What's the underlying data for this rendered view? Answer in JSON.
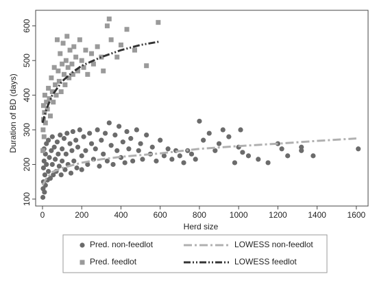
{
  "chart_data": {
    "type": "scatter",
    "xlabel": "Herd size",
    "ylabel": "Duration of BD (days)",
    "xlim": [
      -35,
      1660
    ],
    "ylim": [
      80,
      645
    ],
    "xticks": [
      0,
      200,
      400,
      600,
      800,
      1000,
      1200,
      1400,
      1600
    ],
    "yticks": [
      100,
      200,
      300,
      400,
      500,
      600
    ],
    "grid": false,
    "series": [
      {
        "name": "Pred. non-feedlot",
        "color": "#6b6b6b",
        "marker": "circle",
        "x": [
          2,
          3,
          5,
          5,
          8,
          8,
          10,
          12,
          15,
          15,
          20,
          20,
          25,
          30,
          30,
          35,
          40,
          45,
          50,
          50,
          55,
          60,
          65,
          70,
          75,
          80,
          85,
          90,
          95,
          100,
          100,
          110,
          115,
          120,
          125,
          130,
          140,
          145,
          150,
          155,
          160,
          170,
          175,
          180,
          190,
          200,
          200,
          210,
          220,
          230,
          240,
          250,
          260,
          270,
          280,
          290,
          300,
          310,
          320,
          330,
          340,
          350,
          360,
          370,
          380,
          390,
          400,
          410,
          420,
          430,
          440,
          450,
          460,
          480,
          490,
          500,
          510,
          530,
          550,
          560,
          580,
          600,
          620,
          640,
          660,
          680,
          700,
          720,
          740,
          760,
          780,
          800,
          820,
          850,
          880,
          900,
          920,
          950,
          980,
          1000,
          1010,
          1020,
          1050,
          1100,
          1150,
          1200,
          1220,
          1250,
          1320,
          1320,
          1380,
          1610
        ],
        "values": [
          105,
          130,
          150,
          190,
          210,
          245,
          120,
          170,
          230,
          140,
          260,
          200,
          155,
          180,
          270,
          220,
          160,
          240,
          200,
          280,
          170,
          250,
          215,
          180,
          265,
          230,
          195,
          285,
          170,
          245,
          210,
          275,
          185,
          230,
          290,
          200,
          260,
          175,
          240,
          295,
          210,
          270,
          190,
          250,
          300,
          225,
          185,
          280,
          240,
          200,
          290,
          260,
          215,
          245,
          300,
          195,
          270,
          230,
          290,
          210,
          320,
          255,
          200,
          285,
          240,
          310,
          220,
          265,
          205,
          295,
          245,
          275,
          210,
          300,
          240,
          260,
          215,
          285,
          230,
          250,
          210,
          270,
          225,
          245,
          215,
          240,
          225,
          205,
          240,
          230,
          215,
          325,
          270,
          290,
          240,
          260,
          300,
          280,
          205,
          250,
          300,
          235,
          225,
          215,
          205,
          260,
          245,
          225,
          250,
          240,
          225,
          245
        ]
      },
      {
        "name": "Pred. feedlot",
        "color": "#9a9a9a",
        "marker": "square",
        "x": [
          2,
          3,
          5,
          5,
          8,
          10,
          12,
          15,
          20,
          25,
          30,
          35,
          40,
          45,
          50,
          55,
          60,
          65,
          70,
          75,
          80,
          85,
          90,
          95,
          100,
          105,
          110,
          115,
          120,
          125,
          130,
          135,
          140,
          150,
          155,
          160,
          170,
          180,
          190,
          200,
          210,
          220,
          230,
          250,
          260,
          280,
          300,
          310,
          330,
          340,
          350,
          380,
          400,
          430,
          470,
          530,
          590
        ],
        "values": [
          240,
          300,
          330,
          370,
          280,
          350,
          400,
          320,
          380,
          360,
          420,
          390,
          340,
          450,
          410,
          380,
          480,
          430,
          400,
          560,
          470,
          440,
          520,
          410,
          490,
          550,
          460,
          430,
          500,
          570,
          480,
          450,
          530,
          490,
          460,
          540,
          510,
          470,
          560,
          500,
          480,
          530,
          460,
          520,
          490,
          540,
          510,
          470,
          600,
          620,
          560,
          510,
          545,
          590,
          530,
          485,
          610
        ]
      },
      {
        "name": "LOWESS non-feedlot",
        "color": "#b0b0b0",
        "marker": "line",
        "dash": "dash-dot",
        "x": [
          0,
          20,
          50,
          100,
          200,
          300,
          400,
          600,
          800,
          1000,
          1200,
          1400,
          1600
        ],
        "values": [
          140,
          160,
          178,
          190,
          205,
          215,
          222,
          232,
          245,
          253,
          260,
          268,
          275
        ]
      },
      {
        "name": "LOWESS feedlot",
        "color": "#333333",
        "marker": "line",
        "dash": "dash-dot-dot",
        "x": [
          0,
          20,
          50,
          100,
          150,
          200,
          300,
          400,
          500,
          600
        ],
        "values": [
          320,
          360,
          400,
          440,
          465,
          485,
          510,
          530,
          545,
          555
        ]
      }
    ]
  }
}
